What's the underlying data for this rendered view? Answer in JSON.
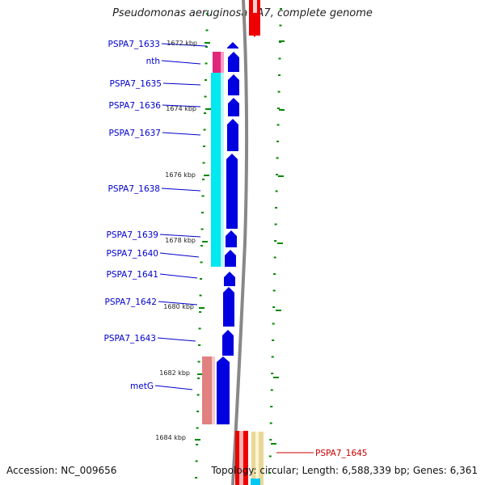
{
  "title": "Pseudomonas aeruginosa PA7, complete genome",
  "footer": {
    "accession": "Accession: NC_009656",
    "topology": "Topology: circular; Length: 6,588,339 bp; Genes: 6,361"
  },
  "colors": {
    "forward_gene": "#0000e0",
    "label_blue": "#0000cc",
    "label_red": "#cc0000",
    "cog_magenta": "#e0287a",
    "cog_cyan": "#00e8f0",
    "cog_salmon": "#e08080",
    "cog_khaki": "#e8d898",
    "reverse_gene": "#ee0000",
    "backbone": "#808080",
    "tick": "#008800"
  },
  "scale_labels": [
    "1672 kbp",
    "1674 kbp",
    "1676 kbp",
    "1678 kbp",
    "1680 kbp",
    "1682 kbp",
    "1684 kbp"
  ],
  "gene_labels": [
    "PSPA7_1633",
    "nth",
    "PSPA7_1635",
    "PSPA7_1636",
    "PSPA7_1637",
    "PSPA7_1638",
    "PSPA7_1639",
    "PSPA7_1640",
    "PSPA7_1641",
    "PSPA7_1642",
    "PSPA7_1643",
    "metG",
    "PSPA7_1645"
  ]
}
